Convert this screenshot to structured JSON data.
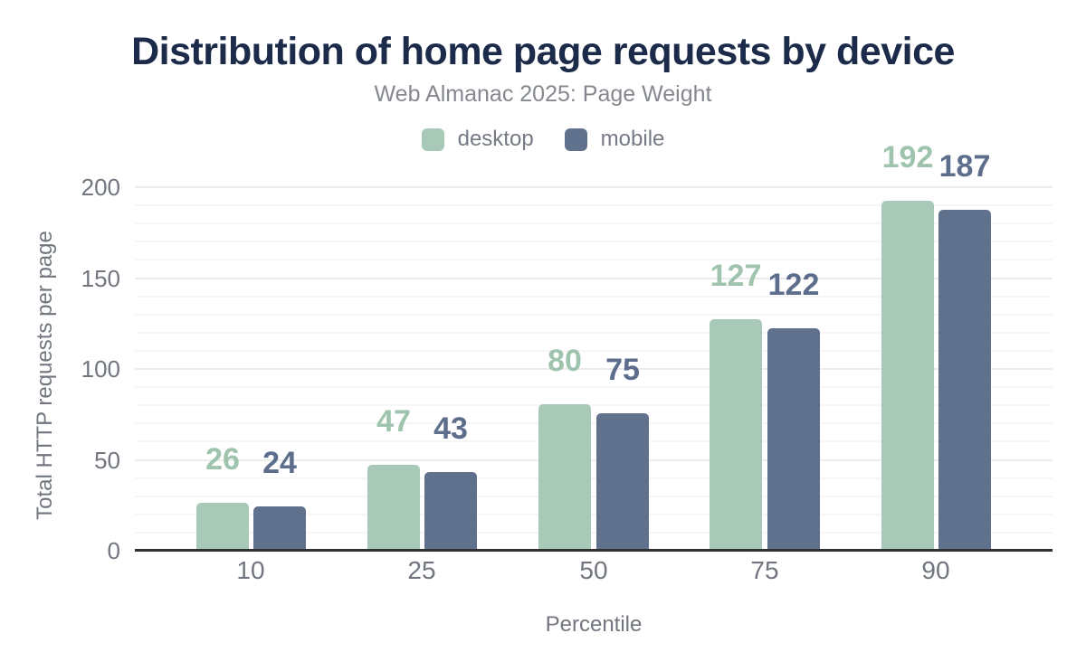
{
  "chart_data": {
    "type": "bar",
    "title": "Distribution of home page requests by device",
    "subtitle": "Web Almanac 2025: Page Weight",
    "xlabel": "Percentile",
    "ylabel": "Total HTTP requests per page",
    "categories": [
      "10",
      "25",
      "50",
      "75",
      "90"
    ],
    "series": [
      {
        "name": "desktop",
        "values": [
          26,
          47,
          80,
          127,
          192
        ],
        "color": "#a8c9b8",
        "label_color": "#9fc4ae"
      },
      {
        "name": "mobile",
        "values": [
          24,
          43,
          75,
          122,
          187
        ],
        "color": "#60718d",
        "label_color": "#5d6e8c"
      }
    ],
    "ylim": [
      0,
      200
    ],
    "yticks": [
      0,
      50,
      100,
      150,
      200
    ],
    "minor_grid_step": 10,
    "grid": "on",
    "legend_position": "top",
    "value_labels": "above-bars"
  },
  "styles": {
    "background": "#ffffff",
    "title_color": "#1c2b49",
    "subtitle_color": "#85888f",
    "tick_color": "#71767e",
    "axis_title_color": "#71767e",
    "legend_text_color": "#757a84",
    "axis_line_color": "#303030",
    "grid_minor_color": "#f6f6f6",
    "grid_major_color": "#ececec"
  }
}
